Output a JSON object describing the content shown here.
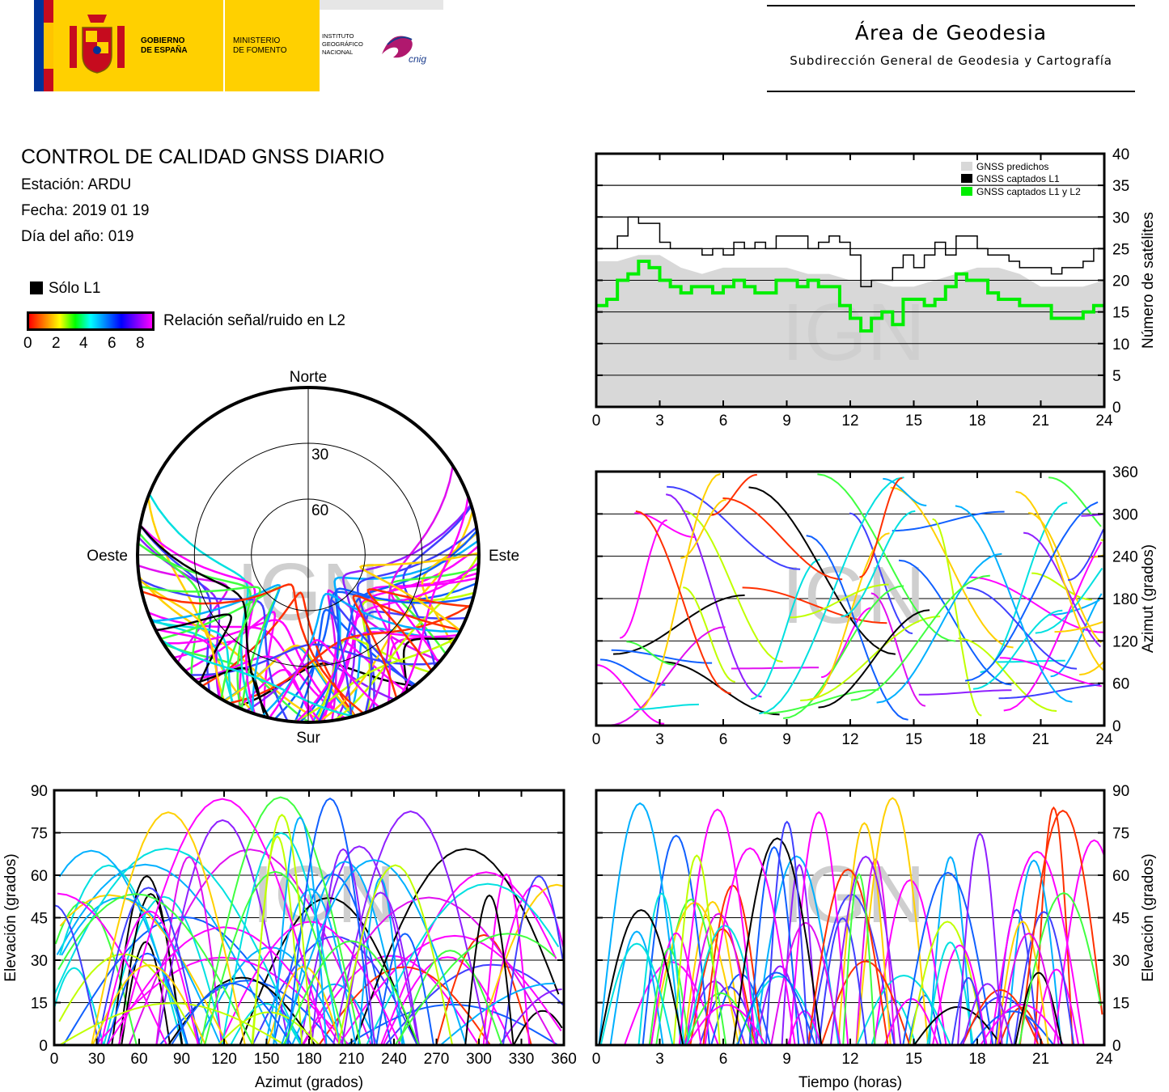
{
  "header": {
    "gov_line1": "GOBIERNO",
    "gov_line2": "DE ESPAÑA",
    "min_line1": "MINISTERIO",
    "min_line2": "DE FOMENTO",
    "ign_line1": "INSTITUTO",
    "ign_line2": "GEOGRÁFICO",
    "ign_line3": "NACIONAL",
    "cnig_logo": "cnig",
    "area_title": "Área de Geodesia",
    "area_subtitle": "Subdirección General de Geodesia y Cartografía",
    "colors": {
      "flag_red": "#c60b1e",
      "flag_yellow": "#ffc400",
      "eu_blue": "#003399",
      "ministry_yellow": "#ffd000"
    }
  },
  "report": {
    "title": "CONTROL DE CALIDAD GNSS DIARIO",
    "station": "Estación: ARDU",
    "date": "Fecha: 2019 01 19",
    "doy": "Día del año: 019"
  },
  "legend": {
    "only_l1": "Sólo L1",
    "snr_label": "Relación señal/ruido en L2",
    "snr_ticks": [
      "0",
      "2",
      "4",
      "6",
      "8"
    ]
  },
  "watermark": "IGN",
  "chart_data": [
    {
      "type": "area",
      "id": "satellite-count",
      "xlabel": "",
      "ylabel": "Número de satélites",
      "xlim": [
        0,
        24
      ],
      "ylim": [
        0,
        40
      ],
      "xticks": [
        "0",
        "3",
        "6",
        "9",
        "12",
        "15",
        "18",
        "21",
        "24"
      ],
      "yticks": [
        "0",
        "5",
        "10",
        "15",
        "20",
        "25",
        "30",
        "35",
        "40"
      ],
      "grid": "horizontal",
      "legend_position": "top-right",
      "series": [
        {
          "name": "GNSS predichos",
          "color": "#d8d8d8",
          "x": [
            0,
            1,
            2,
            3,
            4,
            5,
            6,
            7,
            8,
            9,
            10,
            11,
            12,
            13,
            14,
            15,
            16,
            17,
            18,
            19,
            20,
            21,
            22,
            23,
            24
          ],
          "values": [
            23,
            23,
            24,
            24,
            22,
            21,
            22,
            22,
            22,
            22,
            21,
            21,
            20,
            20,
            19,
            19,
            20,
            21,
            22,
            22,
            21,
            19,
            19,
            19,
            20
          ]
        },
        {
          "name": "GNSS captados L1",
          "color": "#000000",
          "x": [
            0,
            0.5,
            1,
            1.5,
            2,
            2.5,
            3,
            3.5,
            4,
            4.5,
            5,
            5.5,
            6,
            6.5,
            7,
            7.5,
            8,
            8.5,
            9,
            9.5,
            10,
            10.5,
            11,
            11.5,
            12,
            12.5,
            13,
            13.5,
            14,
            14.5,
            15,
            15.5,
            16,
            16.5,
            17,
            17.5,
            18,
            18.5,
            19,
            19.5,
            20,
            20.5,
            21,
            21.5,
            22,
            22.5,
            23,
            23.5,
            24
          ],
          "values": [
            25,
            25,
            27,
            30,
            29,
            29,
            26,
            25,
            25,
            25,
            24,
            25,
            24,
            26,
            25,
            26,
            25,
            27,
            27,
            27,
            25,
            26,
            27,
            26,
            24,
            19,
            20,
            20,
            22,
            24,
            22,
            24,
            26,
            24,
            27,
            27,
            25,
            24,
            24,
            23,
            22,
            22,
            22,
            21,
            22,
            22,
            23,
            25,
            25
          ]
        },
        {
          "name": "GNSS captados L1 y L2",
          "color": "#00ee00",
          "x": [
            0,
            0.5,
            1,
            1.5,
            2,
            2.5,
            3,
            3.5,
            4,
            4.5,
            5,
            5.5,
            6,
            6.5,
            7,
            7.5,
            8,
            8.5,
            9,
            9.5,
            10,
            10.5,
            11,
            11.5,
            12,
            12.5,
            13,
            13.5,
            14,
            14.5,
            15,
            15.5,
            16,
            16.5,
            17,
            17.5,
            18,
            18.5,
            19,
            19.5,
            20,
            20.5,
            21,
            21.5,
            22,
            22.5,
            23,
            23.5,
            24
          ],
          "values": [
            16,
            17,
            20,
            21,
            23,
            22,
            20,
            19,
            18,
            19,
            19,
            18,
            19,
            20,
            19,
            18,
            18,
            20,
            20,
            19,
            20,
            19,
            19,
            16,
            14,
            12,
            14,
            15,
            13,
            17,
            17,
            16,
            17,
            19,
            21,
            20,
            20,
            18,
            17,
            17,
            16,
            16,
            16,
            14,
            14,
            14,
            15,
            16,
            16
          ]
        }
      ]
    },
    {
      "type": "scatter",
      "id": "skyplot",
      "projection": "polar",
      "labels": {
        "north": "Norte",
        "south": "Sur",
        "east": "Este",
        "west": "Oeste"
      },
      "rings": [
        "30",
        "60"
      ],
      "color_scale": "SNR L2 0-8 (red→magenta), black = Sólo L1"
    },
    {
      "type": "scatter",
      "id": "azimuth-time",
      "xlabel": "",
      "ylabel": "Azimut (grados)",
      "xlim": [
        0,
        24
      ],
      "ylim": [
        0,
        360
      ],
      "xticks": [
        "0",
        "3",
        "6",
        "9",
        "12",
        "15",
        "18",
        "21",
        "24"
      ],
      "yticks": [
        "0",
        "60",
        "120",
        "180",
        "240",
        "300",
        "360"
      ],
      "grid": "horizontal"
    },
    {
      "type": "scatter",
      "id": "elevation-azimuth",
      "xlabel": "Azimut (grados)",
      "ylabel": "Elevación (grados)",
      "xlim": [
        0,
        360
      ],
      "ylim": [
        0,
        90
      ],
      "xticks": [
        "0",
        "30",
        "60",
        "90",
        "120",
        "150",
        "180",
        "210",
        "240",
        "270",
        "300",
        "330",
        "360"
      ],
      "yticks": [
        "0",
        "15",
        "30",
        "45",
        "60",
        "75",
        "90"
      ],
      "grid": "horizontal"
    },
    {
      "type": "scatter",
      "id": "elevation-time",
      "xlabel": "Tiempo (horas)",
      "ylabel": "Elevación (grados)",
      "xlim": [
        0,
        24
      ],
      "ylim": [
        0,
        90
      ],
      "xticks": [
        "0",
        "3",
        "6",
        "9",
        "12",
        "15",
        "18",
        "21",
        "24"
      ],
      "yticks": [
        "0",
        "15",
        "30",
        "45",
        "60",
        "75",
        "90"
      ],
      "grid": "horizontal"
    }
  ]
}
